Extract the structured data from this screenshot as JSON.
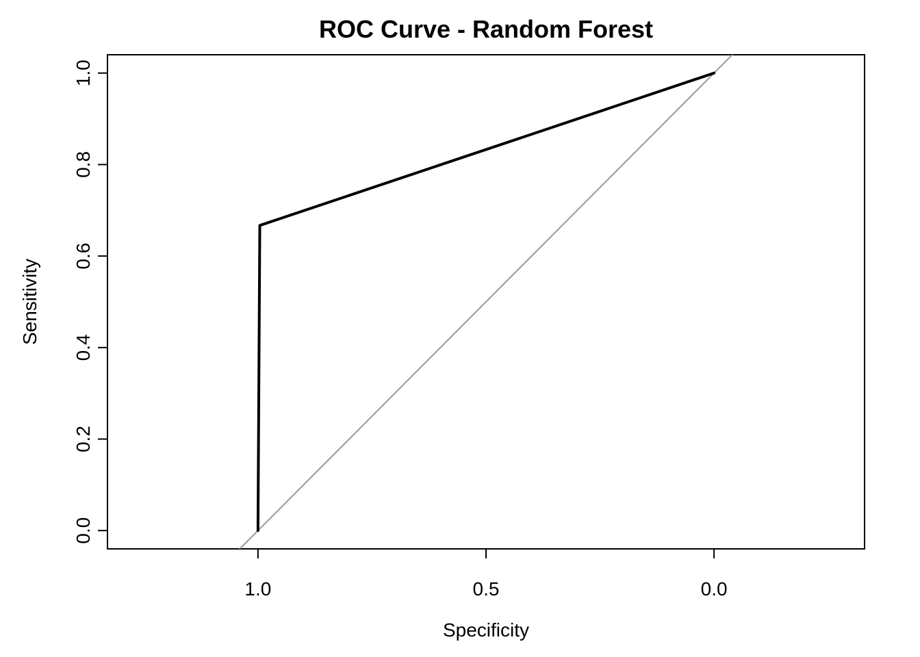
{
  "chart_data": {
    "type": "line",
    "title": "ROC Curve - Random Forest",
    "xlabel": "Specificity",
    "ylabel": "Sensitivity",
    "x_reversed": true,
    "xlim": [
      1.33,
      -0.33
    ],
    "ylim": [
      -0.04,
      1.04
    ],
    "x_ticks": [
      1.0,
      0.5,
      0.0
    ],
    "x_tick_labels": [
      "1.0",
      "0.5",
      "0.0"
    ],
    "y_ticks": [
      0.0,
      0.2,
      0.4,
      0.6,
      0.8,
      1.0
    ],
    "y_tick_labels": [
      "0.0",
      "0.2",
      "0.4",
      "0.6",
      "0.8",
      "1.0"
    ],
    "grid": false,
    "series": [
      {
        "specificity": [
          1.0,
          0.996,
          0.0
        ],
        "sensitivity": [
          0.0,
          0.667,
          1.0
        ],
        "color": "#000000"
      }
    ],
    "reference_line": {
      "kind": "diagonal",
      "description_values": {
        "specificity": [
          1.0,
          0.0
        ],
        "sensitivity": [
          0.0,
          1.0
        ]
      },
      "color": "#999999"
    }
  }
}
